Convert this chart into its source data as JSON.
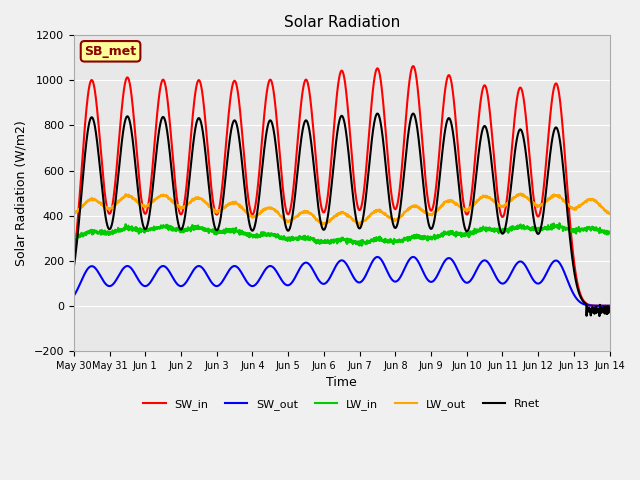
{
  "title": "Solar Radiation",
  "ylabel": "Solar Radiation (W/m2)",
  "xlabel": "Time",
  "ylim": [
    -200,
    1200
  ],
  "annotation_text": "SB_met",
  "annotation_bg": "#FFFF99",
  "annotation_border": "#8B0000",
  "background_color": "#E8E8E8",
  "grid_color": "#FFFFFF",
  "series": {
    "SW_in": {
      "color": "#FF0000",
      "lw": 1.5
    },
    "SW_out": {
      "color": "#0000FF",
      "lw": 1.5
    },
    "LW_in": {
      "color": "#00CC00",
      "lw": 1.5
    },
    "LW_out": {
      "color": "#FFA500",
      "lw": 1.5
    },
    "Rnet": {
      "color": "#000000",
      "lw": 1.5
    }
  },
  "xtick_labels": [
    "May 30",
    "May 31",
    "Jun 1",
    "Jun 2",
    "Jun 3",
    "Jun 4",
    "Jun 5",
    "Jun 6",
    "Jun 7",
    "Jun 8",
    "Jun 9",
    "Jun 10",
    "Jun 11",
    "Jun 12",
    "Jun 13",
    "Jun 14"
  ],
  "SW_in_peaks": [
    1000,
    1010,
    1000,
    998,
    995,
    1000,
    1000,
    1040,
    1050,
    1060,
    1020,
    975,
    965,
    985,
    0
  ],
  "SW_out_peaks": [
    175,
    175,
    175,
    175,
    175,
    175,
    190,
    200,
    215,
    215,
    210,
    200,
    195,
    200,
    0
  ],
  "LW_in_base": 300,
  "LW_out_base": 390,
  "Rnet_peaks": [
    835,
    838,
    835,
    830,
    820,
    820,
    820,
    840,
    850,
    850,
    830,
    795,
    780,
    790,
    0
  ]
}
